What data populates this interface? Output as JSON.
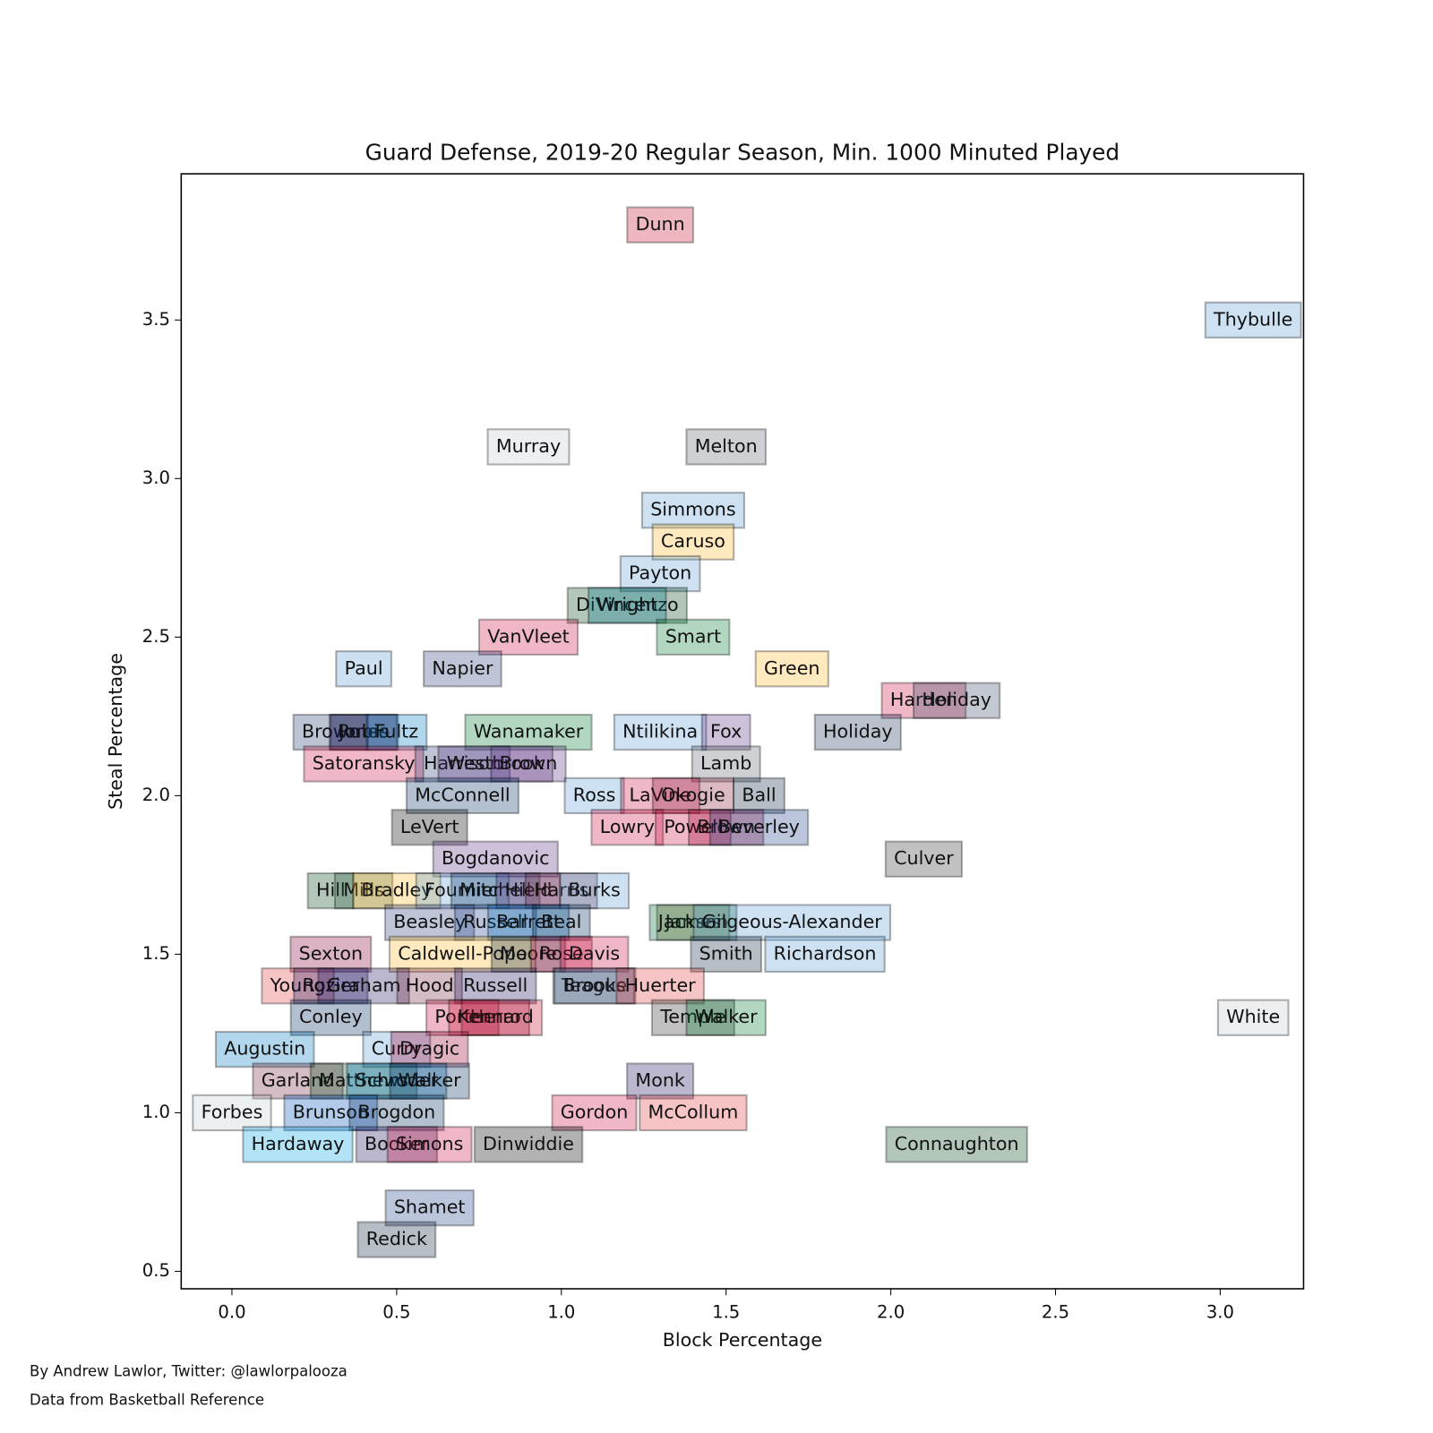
{
  "chart_data": {
    "type": "scatter",
    "title": "Guard Defense, 2019-20 Regular Season, Min. 1000 Minuted Played",
    "x_label": "Block Percentage",
    "y_label": "Steal Percentage",
    "xlim": [
      -0.154,
      3.253
    ],
    "ylim": [
      0.445,
      3.961
    ],
    "xticks": [
      {
        "value": 0,
        "label": "0.0"
      },
      0.5,
      {
        "value": 1,
        "label": "1.0"
      },
      1.5,
      {
        "value": 2,
        "label": "2.0"
      },
      2.5,
      {
        "value": 3,
        "label": "3.0"
      }
    ],
    "yticks": [
      0.5,
      {
        "value": 1,
        "label": "1.0"
      },
      1.5,
      {
        "value": 2,
        "label": "2.0"
      },
      2.5,
      {
        "value": 3,
        "label": "3.0"
      },
      3.5
    ],
    "labels": [
      "Dunn",
      "Thybulle",
      "Murray",
      "Melton",
      "Simmons",
      "Caruso",
      "Payton",
      "DiVincenzo",
      "Wright",
      "VanVleet",
      "Smart",
      "Paul",
      "Napier",
      "Green",
      "Harden",
      "Holiday",
      "Holiday",
      "Brown",
      "Jones",
      "Rubio",
      "Fultz",
      "Wanamaker",
      "Ntilikina",
      "Fox",
      "Satoransky",
      "Harrison",
      "Westbrook",
      "Brown",
      "Lamb",
      "McConnell",
      "Ross",
      "LaVine",
      "Okogie",
      "Ball",
      "LeVert",
      "Lowry",
      "Powell",
      "Brown",
      "Beverley",
      "Culver",
      "Bogdanovic",
      "Hill",
      "Mills",
      "Bradley",
      "Fournier",
      "Mitchell",
      "Hield",
      "Harris",
      "Burks",
      "Beasley",
      "Russell",
      "Barrett",
      "Beal",
      "James",
      "Jackson",
      "Gilgeous-Alexander",
      "Sexton",
      "Caldwell-Pope",
      "Moore",
      "Rose",
      "Davis",
      "Smith",
      "Richardson",
      "Young",
      "Rozier",
      "Graham",
      "Hood",
      "Russell",
      "Teague",
      "Brooks",
      "Huerter",
      "Conley",
      "Porter",
      "Herro",
      "Kennard",
      "Temple",
      "Walker",
      "White",
      "Augustin",
      "Curry",
      "Dragic",
      "Garland",
      "Matthews",
      "Schroder",
      "Walker",
      "Monk",
      "Forbes",
      "Brunson",
      "Brogdon",
      "Gordon",
      "McCollum",
      "Hardaway",
      "Booker",
      "Simons",
      "Dinwiddie",
      "Connaughton",
      "Shamet",
      "Redick"
    ],
    "x": [
      1.3,
      3.1,
      0.9,
      1.5,
      1.4,
      1.4,
      1.3,
      1.2,
      1.2,
      0.9,
      1.4,
      0.4,
      0.7,
      1.7,
      2.1,
      2.2,
      1.9,
      0.3,
      0.4,
      0.4,
      0.5,
      0.9,
      1.3,
      1.5,
      0.4,
      0.7,
      0.8,
      0.9,
      1.5,
      0.7,
      1.1,
      1.3,
      1.4,
      1.6,
      0.6,
      1.2,
      1.4,
      1.5,
      1.6,
      2.1,
      0.8,
      0.3,
      0.4,
      0.5,
      0.7,
      0.8,
      0.9,
      1.0,
      1.1,
      0.6,
      0.8,
      0.9,
      1.0,
      1.4,
      1.4,
      1.7,
      0.3,
      0.7,
      0.9,
      1.0,
      1.1,
      1.5,
      1.8,
      0.2,
      0.3,
      0.4,
      0.6,
      0.8,
      1.1,
      1.1,
      1.3,
      0.3,
      0.7,
      0.8,
      0.8,
      1.4,
      1.5,
      3.1,
      0.1,
      0.5,
      0.6,
      0.2,
      0.4,
      0.5,
      0.6,
      1.3,
      0.0,
      0.3,
      0.5,
      1.1,
      1.4,
      0.2,
      0.5,
      0.6,
      0.9,
      2.2,
      0.6,
      0.5
    ],
    "values": [
      3.8,
      3.5,
      3.1,
      3.1,
      2.9,
      2.8,
      2.7,
      2.6,
      2.6,
      2.5,
      2.5,
      2.4,
      2.4,
      2.4,
      2.3,
      2.3,
      2.2,
      2.2,
      2.2,
      2.2,
      2.2,
      2.2,
      2.2,
      2.2,
      2.1,
      2.1,
      2.1,
      2.1,
      2.1,
      2.0,
      2.0,
      2.0,
      2.0,
      2.0,
      1.9,
      1.9,
      1.9,
      1.9,
      1.9,
      1.8,
      1.8,
      1.7,
      1.7,
      1.7,
      1.7,
      1.7,
      1.7,
      1.7,
      1.7,
      1.6,
      1.6,
      1.6,
      1.6,
      1.6,
      1.6,
      1.6,
      1.5,
      1.5,
      1.5,
      1.5,
      1.5,
      1.5,
      1.5,
      1.4,
      1.4,
      1.4,
      1.4,
      1.4,
      1.4,
      1.4,
      1.4,
      1.3,
      1.3,
      1.3,
      1.3,
      1.3,
      1.3,
      1.3,
      1.2,
      1.2,
      1.2,
      1.1,
      1.1,
      1.1,
      1.1,
      1.1,
      1.0,
      1.0,
      1.0,
      1.0,
      1.0,
      0.9,
      0.9,
      0.9,
      0.9,
      0.9,
      0.7,
      0.6
    ],
    "colors": [
      "#c8102e",
      "#5b9bd5",
      "#c4ced4",
      "#5d6371",
      "#5b9bd5",
      "#fdb927",
      "#5b9bd5",
      "#00471b",
      "#00788c",
      "#ce1141",
      "#007a33",
      "#5b9bd5",
      "#2a3a7a",
      "#fdb927",
      "#ce1141",
      "#3a4a6a",
      "#1d2f5a",
      "#1d3a6a",
      "#0c2340",
      "#1d1160",
      "#0077c0",
      "#007a33",
      "#5b9bd5",
      "#5a2d81",
      "#ce1141",
      "#2a3a7a",
      "#5a2d81",
      "#5a2d81",
      "#5d6371",
      "#002d62",
      "#5b9bd5",
      "#ce1141",
      "#8b1a3a",
      "#0c2340",
      "#000000",
      "#ce1141",
      "#ce1141",
      "#a00030",
      "#1d428a",
      "#333333",
      "#5a2d81",
      "#00471b",
      "#2f5b3a",
      "#fdb927",
      "#5b9bd5",
      "#002b5c",
      "#5a2d81",
      "#6f263d",
      "#5b9bd5",
      "#2a3a7a",
      "#1d428a",
      "#006bb6",
      "#002b5c",
      "#7a5a10",
      "#006b3a",
      "#5b9bd5",
      "#860038",
      "#fdb927",
      "#0c2340",
      "#ce1141",
      "#ce1141",
      "#0c2340",
      "#5b9bd5",
      "#e03a3e",
      "#1d1160",
      "#1d1160",
      "#6f263d",
      "#1d1160",
      "#0c2340",
      "#5d76a9",
      "#e03a3e",
      "#002b5c",
      "#ce1141",
      "#98002e",
      "#c8102e",
      "#333333",
      "#007a33",
      "#c4ced4",
      "#0077c0",
      "#5b9bd5",
      "#98002e",
      "#6f263d",
      "#00471b",
      "#007ac1",
      "#002b5c",
      "#1d1160",
      "#c4ced4",
      "#0053bc",
      "#002d62",
      "#ce1141",
      "#e03a3e",
      "#00a3e0",
      "#1d1160",
      "#ce1141",
      "#000000",
      "#00471b",
      "#1d428a",
      "#0c2340"
    ]
  },
  "credits": [
    "By Andrew Lawlor, Twitter: @lawlorpalooza",
    "Data from Basketball Reference"
  ]
}
